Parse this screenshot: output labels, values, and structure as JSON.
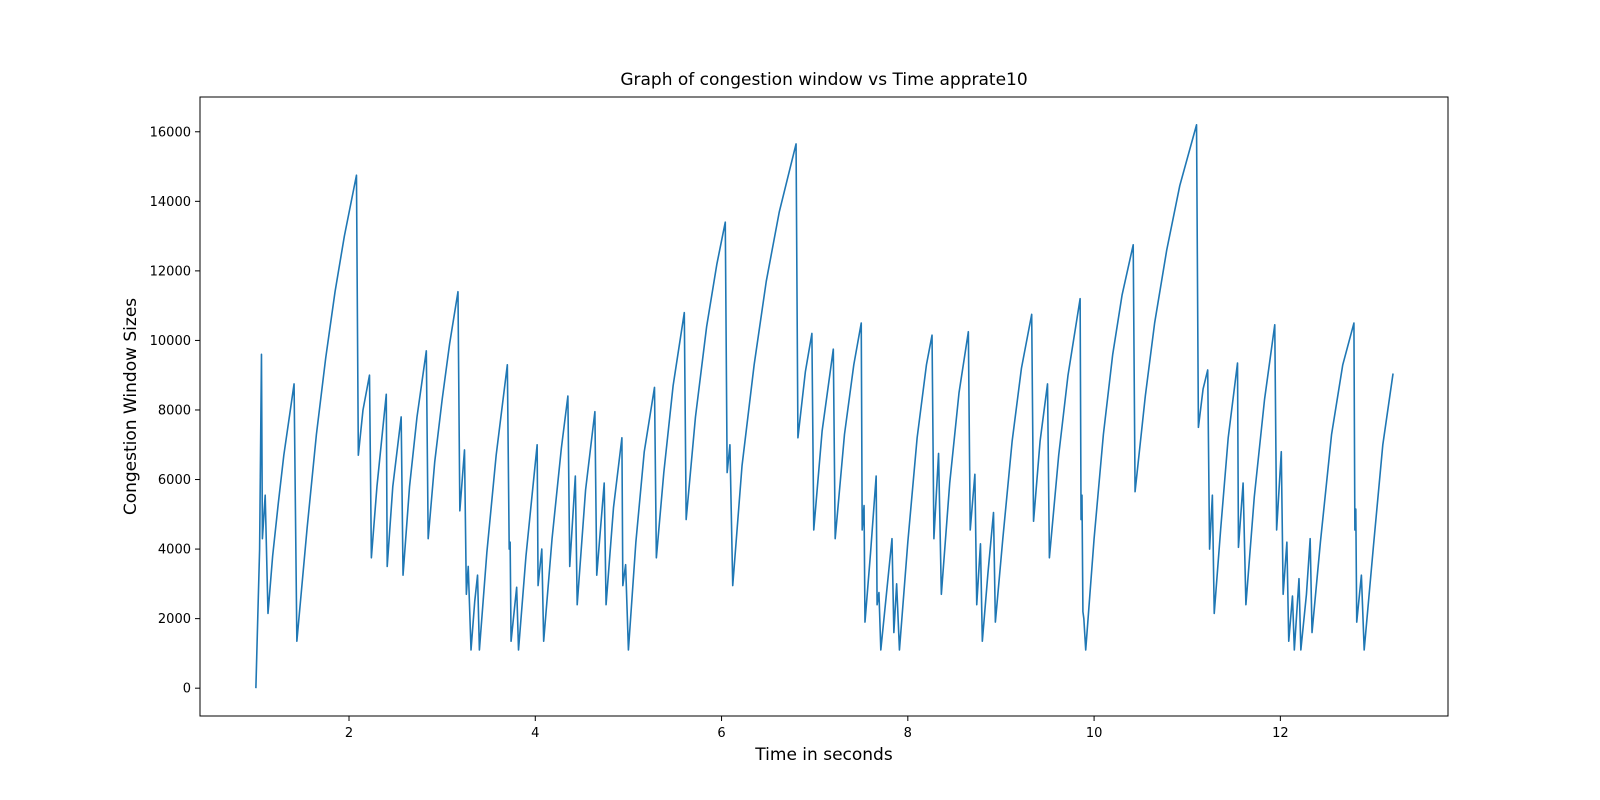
{
  "chart_data": {
    "type": "line",
    "title": "Graph of congestion window vs Time apprate10",
    "xlabel": "Time in seconds",
    "ylabel": "Congestion Window Sizes",
    "xlim": [
      0.4,
      13.8
    ],
    "ylim": [
      -800,
      17000
    ],
    "xticks": [
      2,
      4,
      6,
      8,
      10,
      12
    ],
    "yticks": [
      0,
      2000,
      4000,
      6000,
      8000,
      10000,
      12000,
      14000,
      16000
    ],
    "grid": false,
    "line_color": "#1f77b4",
    "series": [
      {
        "values": [
          [
            1.0,
            0
          ],
          [
            1.02,
            2000
          ],
          [
            1.04,
            4000
          ],
          [
            1.06,
            9600
          ],
          [
            1.07,
            4300
          ],
          [
            1.1,
            5550
          ],
          [
            1.13,
            2150
          ],
          [
            1.18,
            3800
          ],
          [
            1.24,
            5300
          ],
          [
            1.3,
            6700
          ],
          [
            1.37,
            8000
          ],
          [
            1.41,
            8750
          ],
          [
            1.44,
            1350
          ],
          [
            1.55,
            4600
          ],
          [
            1.65,
            7300
          ],
          [
            1.75,
            9500
          ],
          [
            1.85,
            11400
          ],
          [
            1.95,
            13000
          ],
          [
            2.08,
            14750
          ],
          [
            2.1,
            6700
          ],
          [
            2.15,
            8000
          ],
          [
            2.22,
            9000
          ],
          [
            2.24,
            3750
          ],
          [
            2.3,
            5800
          ],
          [
            2.4,
            8450
          ],
          [
            2.41,
            3500
          ],
          [
            2.47,
            5800
          ],
          [
            2.56,
            7800
          ],
          [
            2.58,
            3250
          ],
          [
            2.65,
            5800
          ],
          [
            2.73,
            7800
          ],
          [
            2.83,
            9700
          ],
          [
            2.85,
            4300
          ],
          [
            2.92,
            6500
          ],
          [
            3.0,
            8300
          ],
          [
            3.08,
            9900
          ],
          [
            3.17,
            11400
          ],
          [
            3.19,
            5100
          ],
          [
            3.24,
            6850
          ],
          [
            3.26,
            2700
          ],
          [
            3.28,
            3500
          ],
          [
            3.31,
            1100
          ],
          [
            3.35,
            2500
          ],
          [
            3.38,
            3250
          ],
          [
            3.4,
            1100
          ],
          [
            3.48,
            3900
          ],
          [
            3.58,
            6700
          ],
          [
            3.7,
            9300
          ],
          [
            3.72,
            4000
          ],
          [
            3.73,
            4200
          ],
          [
            3.74,
            1350
          ],
          [
            3.8,
            2900
          ],
          [
            3.82,
            1100
          ],
          [
            3.9,
            3800
          ],
          [
            4.02,
            7000
          ],
          [
            4.03,
            2950
          ],
          [
            4.07,
            4000
          ],
          [
            4.09,
            1350
          ],
          [
            4.18,
            4300
          ],
          [
            4.28,
            6900
          ],
          [
            4.35,
            8400
          ],
          [
            4.37,
            3500
          ],
          [
            4.43,
            6100
          ],
          [
            4.45,
            2400
          ],
          [
            4.54,
            5700
          ],
          [
            4.64,
            7950
          ],
          [
            4.66,
            3250
          ],
          [
            4.74,
            5900
          ],
          [
            4.76,
            2400
          ],
          [
            4.84,
            5200
          ],
          [
            4.93,
            7200
          ],
          [
            4.94,
            2950
          ],
          [
            4.97,
            3550
          ],
          [
            5.0,
            1100
          ],
          [
            5.08,
            4200
          ],
          [
            5.17,
            6800
          ],
          [
            5.28,
            8650
          ],
          [
            5.3,
            3750
          ],
          [
            5.38,
            6200
          ],
          [
            5.48,
            8700
          ],
          [
            5.6,
            10800
          ],
          [
            5.62,
            4850
          ],
          [
            5.72,
            7800
          ],
          [
            5.84,
            10400
          ],
          [
            5.95,
            12200
          ],
          [
            6.04,
            13400
          ],
          [
            6.06,
            6200
          ],
          [
            6.09,
            7000
          ],
          [
            6.12,
            2950
          ],
          [
            6.22,
            6400
          ],
          [
            6.35,
            9300
          ],
          [
            6.48,
            11700
          ],
          [
            6.62,
            13700
          ],
          [
            6.8,
            15650
          ],
          [
            6.82,
            7200
          ],
          [
            6.9,
            9100
          ],
          [
            6.97,
            10200
          ],
          [
            6.99,
            4550
          ],
          [
            7.08,
            7400
          ],
          [
            7.2,
            9750
          ],
          [
            7.22,
            4300
          ],
          [
            7.32,
            7300
          ],
          [
            7.42,
            9300
          ],
          [
            7.5,
            10500
          ],
          [
            7.51,
            4550
          ],
          [
            7.53,
            5250
          ],
          [
            7.54,
            1900
          ],
          [
            7.6,
            3900
          ],
          [
            7.66,
            6100
          ],
          [
            7.67,
            2400
          ],
          [
            7.69,
            2750
          ],
          [
            7.71,
            1100
          ],
          [
            7.77,
            2700
          ],
          [
            7.83,
            4300
          ],
          [
            7.85,
            1600
          ],
          [
            7.88,
            3000
          ],
          [
            7.91,
            1100
          ],
          [
            8.0,
            4200
          ],
          [
            8.1,
            7200
          ],
          [
            8.2,
            9300
          ],
          [
            8.26,
            10150
          ],
          [
            8.28,
            4300
          ],
          [
            8.33,
            6750
          ],
          [
            8.36,
            2700
          ],
          [
            8.45,
            5900
          ],
          [
            8.55,
            8500
          ],
          [
            8.65,
            10250
          ],
          [
            8.67,
            4550
          ],
          [
            8.72,
            6150
          ],
          [
            8.74,
            2400
          ],
          [
            8.78,
            4150
          ],
          [
            8.8,
            1350
          ],
          [
            8.86,
            3300
          ],
          [
            8.92,
            5050
          ],
          [
            8.94,
            1900
          ],
          [
            9.02,
            4300
          ],
          [
            9.12,
            7100
          ],
          [
            9.22,
            9200
          ],
          [
            9.33,
            10750
          ],
          [
            9.35,
            4800
          ],
          [
            9.42,
            7100
          ],
          [
            9.5,
            8750
          ],
          [
            9.52,
            3750
          ],
          [
            9.62,
            6700
          ],
          [
            9.72,
            9000
          ],
          [
            9.85,
            11200
          ],
          [
            9.86,
            4850
          ],
          [
            9.87,
            5550
          ],
          [
            9.88,
            2200
          ],
          [
            9.89,
            2000
          ],
          [
            9.91,
            1100
          ],
          [
            10.0,
            4300
          ],
          [
            10.1,
            7300
          ],
          [
            10.2,
            9600
          ],
          [
            10.3,
            11300
          ],
          [
            10.42,
            12750
          ],
          [
            10.44,
            5650
          ],
          [
            10.55,
            8400
          ],
          [
            10.65,
            10500
          ],
          [
            10.78,
            12600
          ],
          [
            10.92,
            14450
          ],
          [
            11.1,
            16200
          ],
          [
            11.12,
            7500
          ],
          [
            11.17,
            8600
          ],
          [
            11.22,
            9150
          ],
          [
            11.24,
            4000
          ],
          [
            11.27,
            5550
          ],
          [
            11.29,
            2150
          ],
          [
            11.36,
            4600
          ],
          [
            11.44,
            7200
          ],
          [
            11.54,
            9350
          ],
          [
            11.55,
            4050
          ],
          [
            11.6,
            5900
          ],
          [
            11.63,
            2400
          ],
          [
            11.72,
            5500
          ],
          [
            11.83,
            8300
          ],
          [
            11.94,
            10450
          ],
          [
            11.96,
            4550
          ],
          [
            12.01,
            6800
          ],
          [
            12.03,
            2700
          ],
          [
            12.07,
            4200
          ],
          [
            12.09,
            1350
          ],
          [
            12.13,
            2650
          ],
          [
            12.15,
            1100
          ],
          [
            12.2,
            3150
          ],
          [
            12.22,
            1100
          ],
          [
            12.28,
            2700
          ],
          [
            12.32,
            4300
          ],
          [
            12.34,
            1600
          ],
          [
            12.43,
            4200
          ],
          [
            12.55,
            7300
          ],
          [
            12.67,
            9300
          ],
          [
            12.79,
            10500
          ],
          [
            12.8,
            4550
          ],
          [
            12.81,
            5150
          ],
          [
            12.82,
            1900
          ],
          [
            12.87,
            3250
          ],
          [
            12.9,
            1100
          ],
          [
            13.0,
            4100
          ],
          [
            13.1,
            7000
          ],
          [
            13.21,
            9050
          ]
        ]
      }
    ]
  }
}
